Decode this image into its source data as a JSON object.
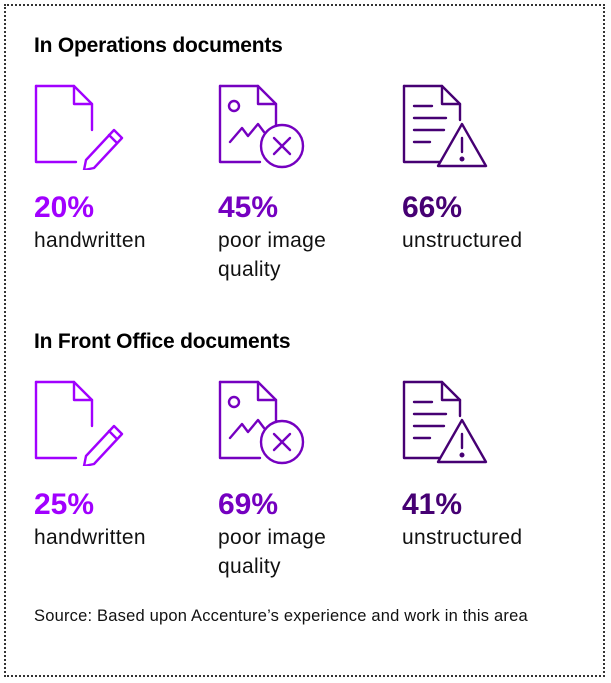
{
  "colors": {
    "bright_purple": "#a100ff",
    "medium_purple": "#7500c0",
    "dark_purple": "#460073"
  },
  "sections": [
    {
      "title": "In Operations documents",
      "stats": [
        {
          "icon": "document-pen-icon",
          "percent": "20%",
          "line1": "handwritten",
          "line2": "",
          "color": "#a100ff"
        },
        {
          "icon": "document-image-error-icon",
          "percent": "45%",
          "line1": "poor image",
          "line2": "quality",
          "color": "#7500c0"
        },
        {
          "icon": "document-warning-icon",
          "percent": "66%",
          "line1": "unstructured",
          "line2": "",
          "color": "#460073"
        }
      ]
    },
    {
      "title": "In Front Office documents",
      "stats": [
        {
          "icon": "document-pen-icon",
          "percent": "25%",
          "line1": "handwritten",
          "line2": "",
          "color": "#a100ff"
        },
        {
          "icon": "document-image-error-icon",
          "percent": "69%",
          "line1": "poor image",
          "line2": "quality",
          "color": "#7500c0"
        },
        {
          "icon": "document-warning-icon",
          "percent": "41%",
          "line1": "unstructured",
          "line2": "",
          "color": "#460073"
        }
      ]
    }
  ],
  "source": "Source: Based upon Accenture’s experience and work in this area"
}
